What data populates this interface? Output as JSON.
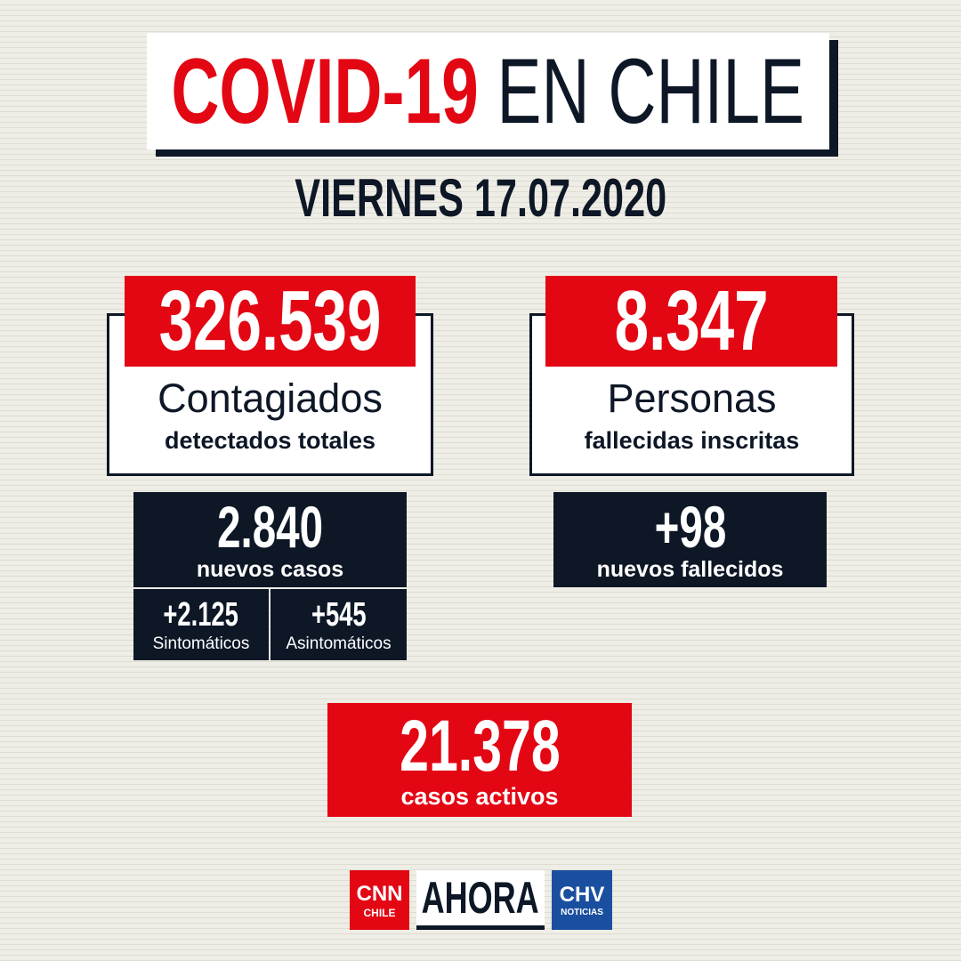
{
  "header": {
    "title_highlight": "COVID-19",
    "title_rest": "EN CHILE",
    "date": "VIERNES 17.07.2020"
  },
  "cards": [
    {
      "number": "326.539",
      "label": "Contagiados",
      "sublabel": "detectados totales"
    },
    {
      "number": "8.347",
      "label": "Personas",
      "sublabel": "fallecidas inscritas"
    }
  ],
  "daily": [
    {
      "number": "2.840",
      "label": "nuevos casos"
    },
    {
      "number": "+98",
      "label": "nuevos fallecidos"
    }
  ],
  "breakdown": [
    {
      "number": "+2.125",
      "label": "Sintomáticos"
    },
    {
      "number": "+545",
      "label": "Asintomáticos"
    }
  ],
  "active": {
    "number": "21.378",
    "label": "casos activos"
  },
  "footer": {
    "cnn": "CNN",
    "cnn_sub": "CHILE",
    "ahora": "AHORA",
    "chv": "CHV",
    "chv_sub": "NOTICIAS"
  }
}
